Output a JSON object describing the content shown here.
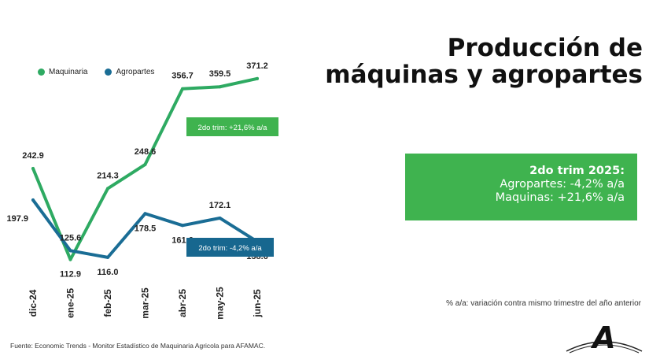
{
  "title_line1": "Producción de",
  "title_line2": "máquinas y agropartes",
  "summary": {
    "title": "2do trim 2025:",
    "line1": "Agropartes: -4,2% a/a",
    "line2": "Maquinas: +21,6% a/a"
  },
  "footnote": "% a/a: variación contra mismo trimestre del año anterior",
  "source": "Fuente: Economic Trends - Monitor Estadístico de Maquinaria Agricola para AFAMAC.",
  "logo_letter": "A",
  "colors": {
    "maquinaria": "#2eaa62",
    "agropartes": "#1a6d95",
    "callout_green": "#3fb34f",
    "callout_blue": "#17678f"
  },
  "chart_data": {
    "type": "line",
    "categories": [
      "dic-24",
      "ene-25",
      "feb-25",
      "mar-25",
      "abr-25",
      "may-25",
      "jun-25"
    ],
    "series": [
      {
        "name": "Maquinaria",
        "values": [
          242.9,
          112.9,
          214.3,
          248.6,
          356.7,
          359.5,
          371.2
        ]
      },
      {
        "name": "Agropartes",
        "values": [
          197.9,
          125.6,
          116.0,
          178.5,
          161.6,
          172.1,
          138.6
        ]
      }
    ],
    "ylim": [
      90,
      380
    ],
    "grid": false,
    "legend_placement": "top-left",
    "callouts": [
      {
        "series": "Maquinaria",
        "text": "2do trim: +21,6% a/a"
      },
      {
        "series": "Agropartes",
        "text": "2do trim: -4,2% a/a"
      }
    ]
  }
}
